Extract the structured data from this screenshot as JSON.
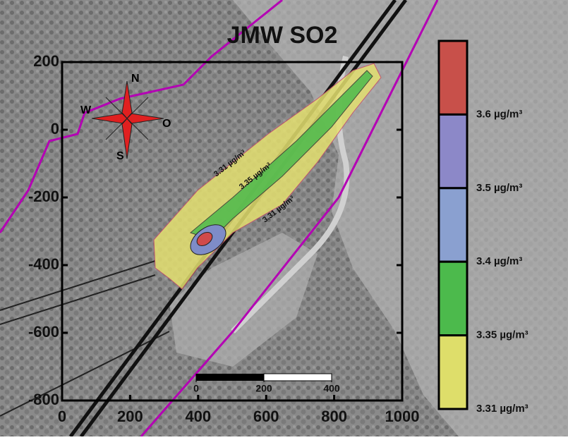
{
  "title": "JMW SO2",
  "x_axis": {
    "lim": [
      0,
      1000
    ],
    "ticks": [
      0,
      200,
      400,
      600,
      800,
      1000
    ]
  },
  "y_axis": {
    "lim": [
      -800,
      200
    ],
    "ticks": [
      200,
      0,
      -200,
      -400,
      -600,
      -800
    ]
  },
  "legend": {
    "items": [
      {
        "label": "3.6 µg/m³",
        "color": "#c8504a"
      },
      {
        "label": "3.5 µg/m³",
        "color": "#8c88c8"
      },
      {
        "label": "3.4 µg/m³",
        "color": "#8aa0d0"
      },
      {
        "label": "3.35 µg/m³",
        "color": "#4cba4c"
      },
      {
        "label": "3.31 µg/m³",
        "color": "#dede6a"
      }
    ]
  },
  "compass": {
    "north": "N",
    "west": "W",
    "south": "S",
    "east": "O"
  },
  "contour_labels": [
    "3.31 µg/m³",
    "3.35 µg/m³",
    "3.31 µg/m³"
  ],
  "scale_bar": {
    "lim": [
      0,
      400
    ],
    "ticks": [
      0,
      200,
      400
    ]
  }
}
